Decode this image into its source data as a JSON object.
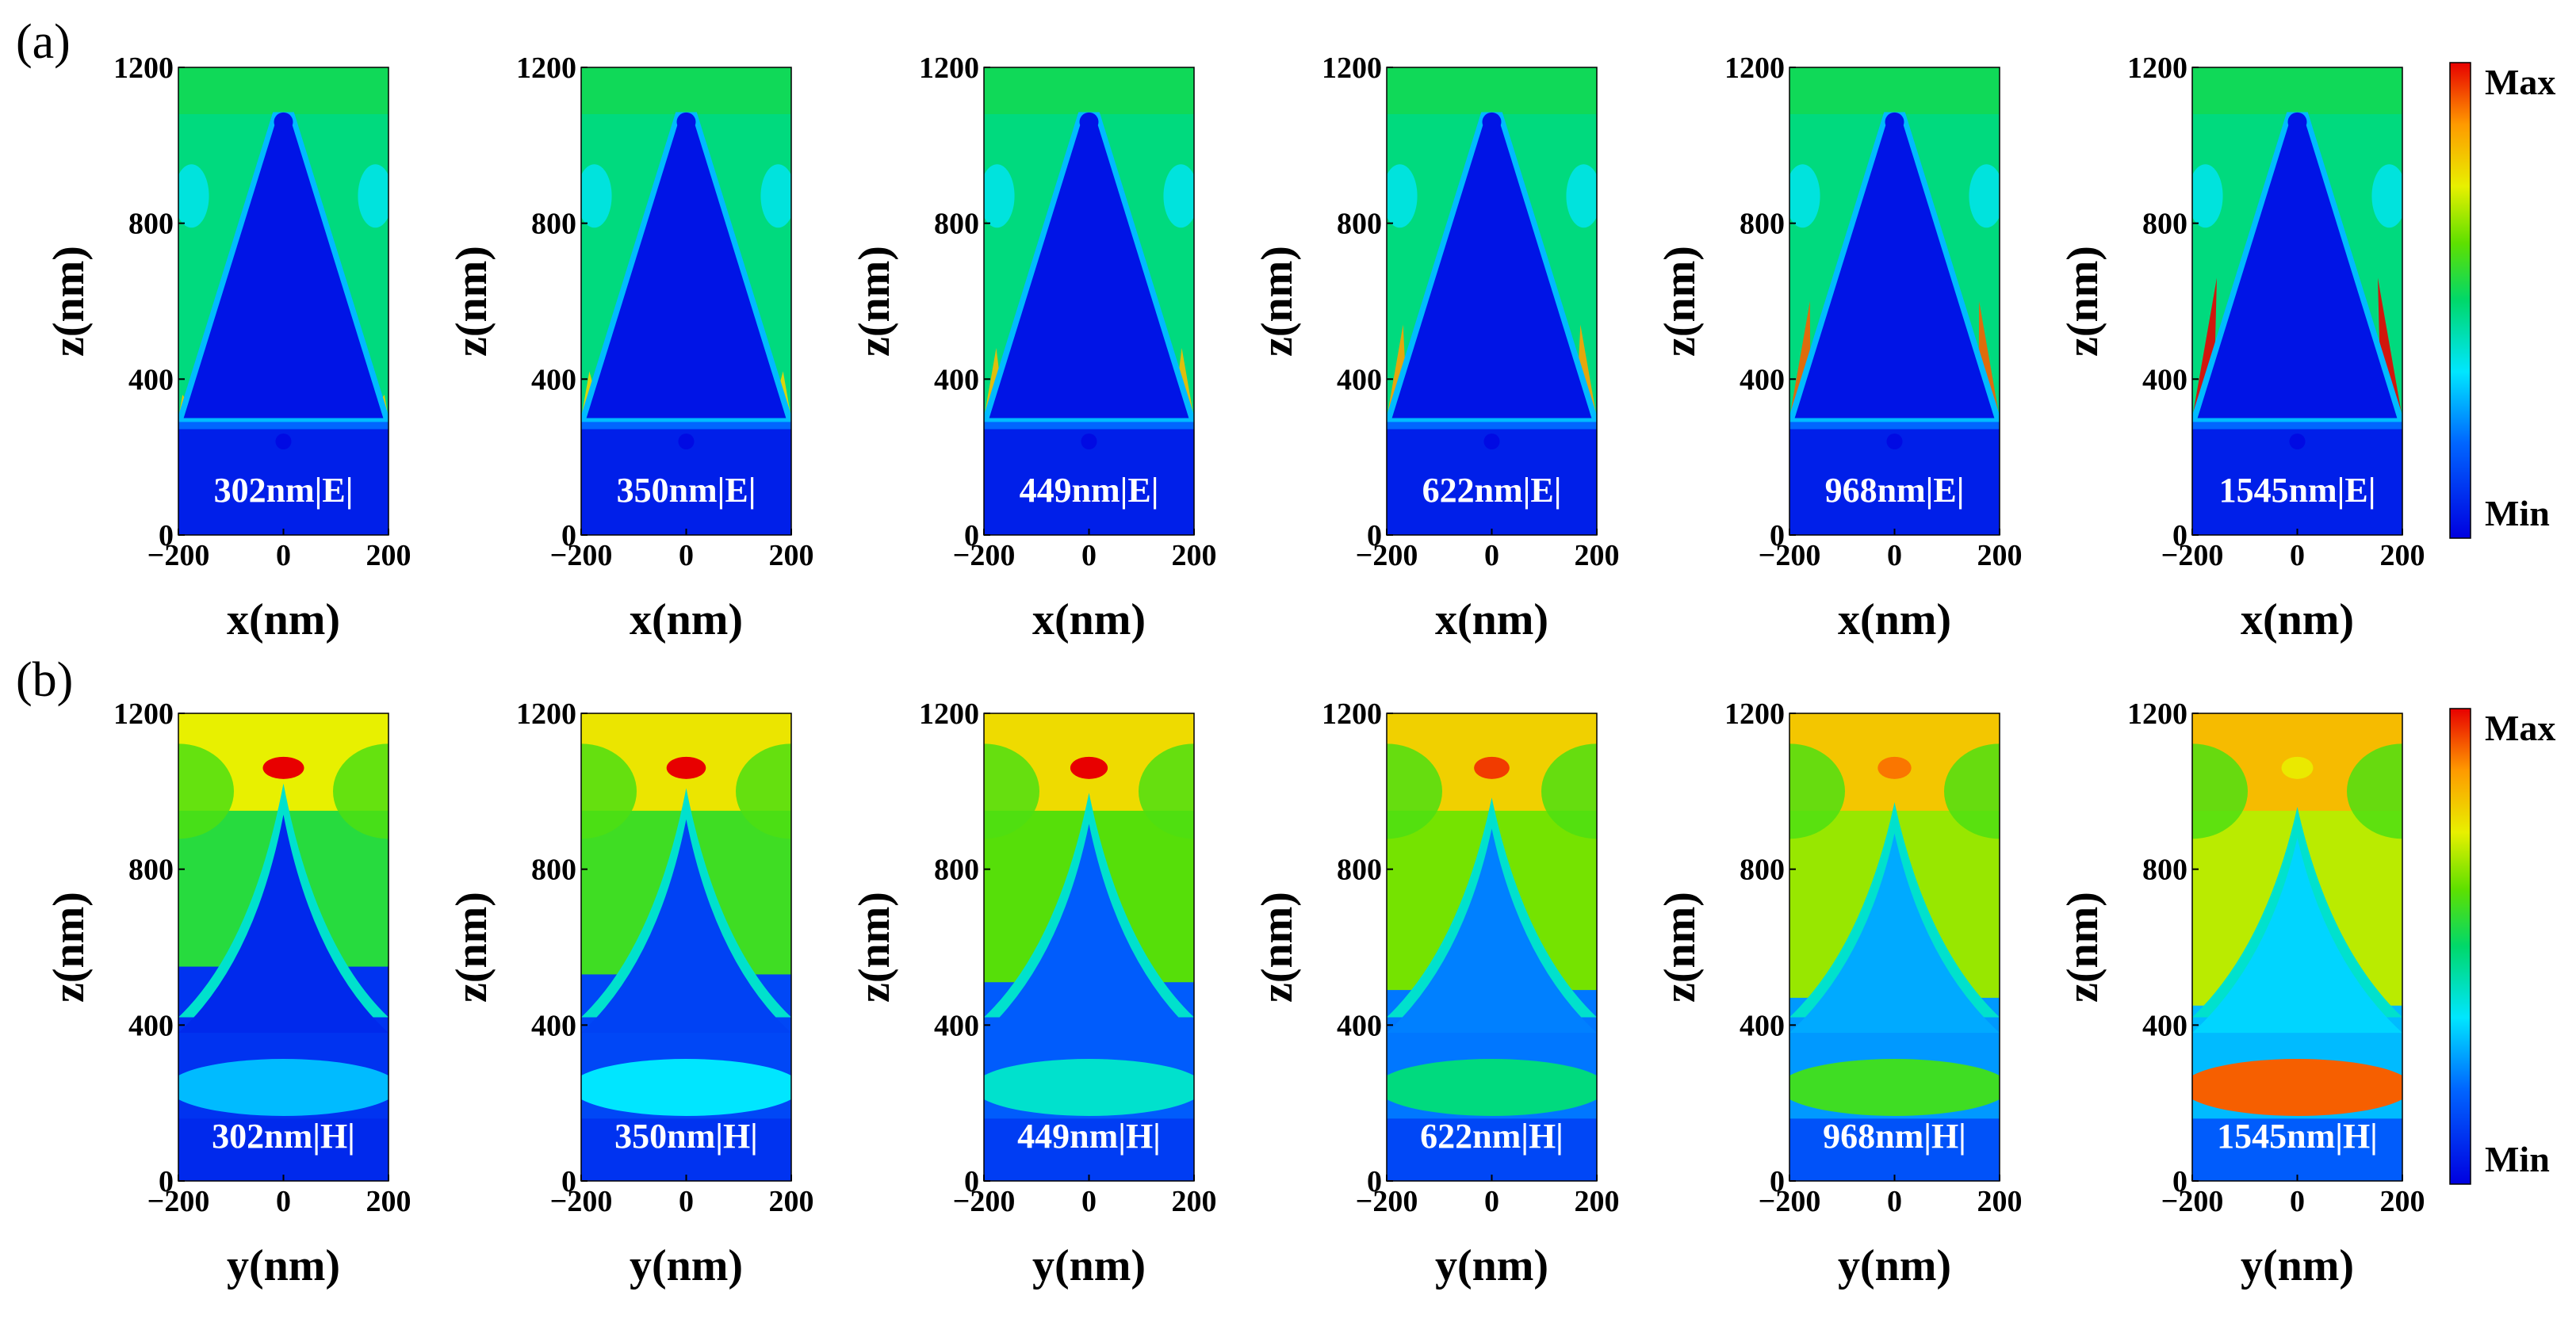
{
  "chart_data": {
    "type": "heatmap",
    "title": "",
    "colorbar": {
      "max_label": "Max",
      "min_label": "Min",
      "colormap": "jet"
    },
    "axis_ranges": {
      "lateral_nm": [
        -200,
        200
      ],
      "z_nm": [
        0,
        1200
      ]
    },
    "x_ticks": [
      "−200",
      "0",
      "200"
    ],
    "z_ticks": [
      "0",
      "400",
      "800",
      "1200"
    ],
    "rows": [
      {
        "panel": "(a)",
        "field": "E",
        "xlabel": "x(nm)",
        "ylabel": "z(nm)",
        "panels": [
          {
            "wavelength_nm": 302,
            "label": "302nm|E|",
            "hot_spot_intensity": 0.8
          },
          {
            "wavelength_nm": 350,
            "label": "350nm|E|",
            "hot_spot_intensity": 0.78
          },
          {
            "wavelength_nm": 449,
            "label": "449nm|E|",
            "hot_spot_intensity": 0.82
          },
          {
            "wavelength_nm": 622,
            "label": "622nm|E|",
            "hot_spot_intensity": 0.86
          },
          {
            "wavelength_nm": 968,
            "label": "968nm|E|",
            "hot_spot_intensity": 0.92
          },
          {
            "wavelength_nm": 1545,
            "label": "1545nm|E|",
            "hot_spot_intensity": 1.0
          }
        ]
      },
      {
        "panel": "(b)",
        "field": "H",
        "xlabel": "y(nm)",
        "ylabel": "z(nm)",
        "panels": [
          {
            "wavelength_nm": 302,
            "label": "302nm|H|",
            "tip_intensity": 1.0,
            "base_band_intensity": 0.3
          },
          {
            "wavelength_nm": 350,
            "label": "350nm|H|",
            "tip_intensity": 1.0,
            "base_band_intensity": 0.35
          },
          {
            "wavelength_nm": 449,
            "label": "449nm|H|",
            "tip_intensity": 1.0,
            "base_band_intensity": 0.4
          },
          {
            "wavelength_nm": 622,
            "label": "622nm|H|",
            "tip_intensity": 0.95,
            "base_band_intensity": 0.48
          },
          {
            "wavelength_nm": 968,
            "label": "968nm|H|",
            "tip_intensity": 0.9,
            "base_band_intensity": 0.58
          },
          {
            "wavelength_nm": 1545,
            "label": "1545nm|H|",
            "tip_intensity": 0.75,
            "base_band_intensity": 0.92
          }
        ]
      }
    ]
  }
}
